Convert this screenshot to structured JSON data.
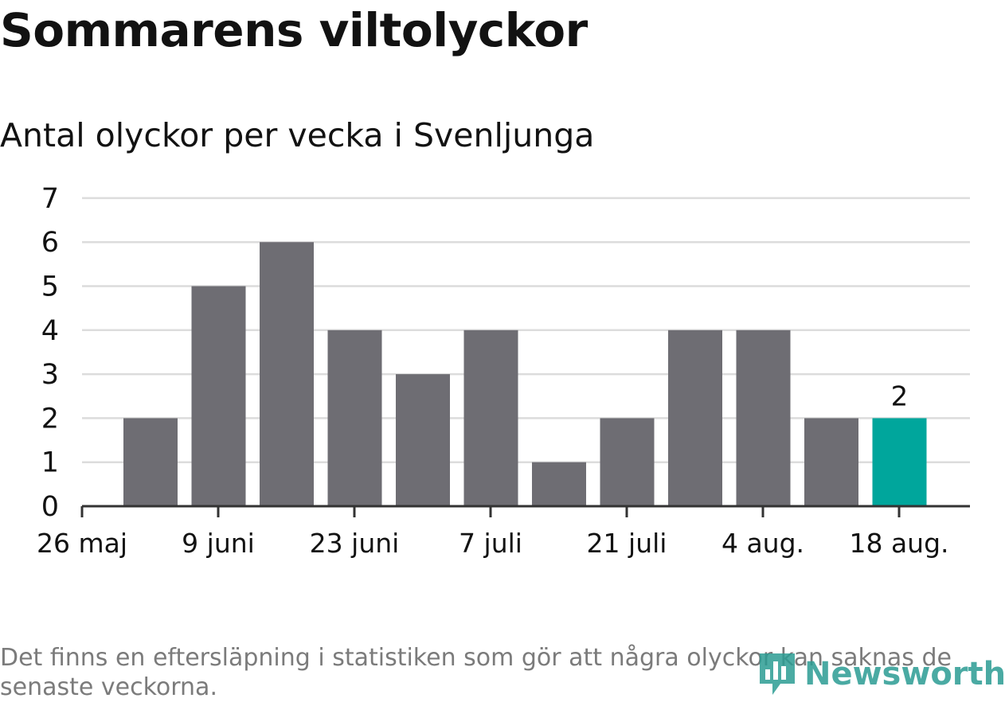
{
  "title": "Sommarens viltolyckor",
  "subtitle": "Antal olyckor per vecka i Svenljunga",
  "note": "Det finns en eftersläpning i statistiken som gör att några olyckor kan saknas de senaste veckorna.",
  "logo": {
    "text": "Newsworthy",
    "icon": "bar-chart-logo-icon"
  },
  "colors": {
    "bar": "#6e6d73",
    "highlight": "#00a69c",
    "grid": "#dcdcdc",
    "axis": "#333333",
    "text": "#121212"
  },
  "chart_data": {
    "type": "bar",
    "title": "Antal olyckor per vecka i Svenljunga",
    "xlabel": "",
    "ylabel": "",
    "ylim": [
      0,
      7
    ],
    "y_ticks": [
      0,
      1,
      2,
      3,
      4,
      5,
      6,
      7
    ],
    "grid": true,
    "x_tick_labels": [
      "26 maj",
      "9 juni",
      "23 juni",
      "7 juli",
      "21 juli",
      "4 aug.",
      "18 aug."
    ],
    "values": [
      2,
      5,
      6,
      4,
      3,
      4,
      1,
      2,
      4,
      4,
      2,
      2
    ],
    "highlight_index": 11,
    "data_labels": [
      {
        "index": 11,
        "text": "2"
      }
    ]
  }
}
